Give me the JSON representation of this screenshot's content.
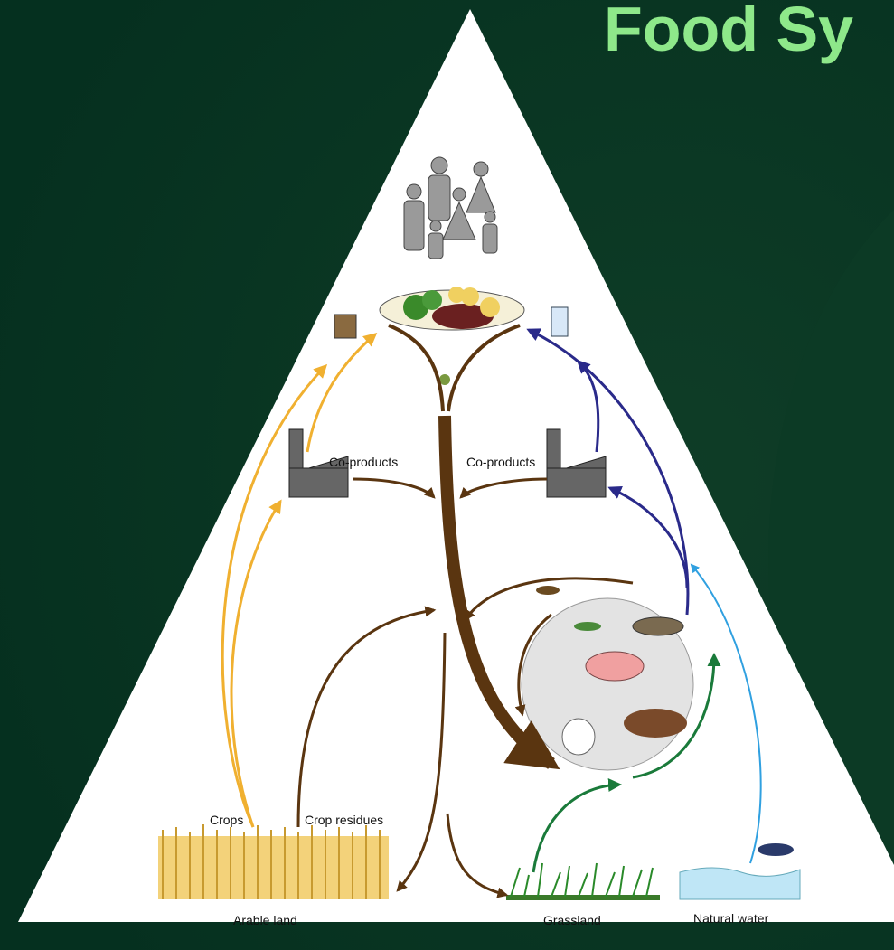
{
  "header": {
    "title": "Food Sy"
  },
  "labels": {
    "co_products_left": "Co-products",
    "co_products_right": "Co-products",
    "crops": "Crops",
    "crop_residues": "Crop residues",
    "arable_land": "Arable land",
    "grassland": "Grassland",
    "natural_water": "Natural water"
  }
}
